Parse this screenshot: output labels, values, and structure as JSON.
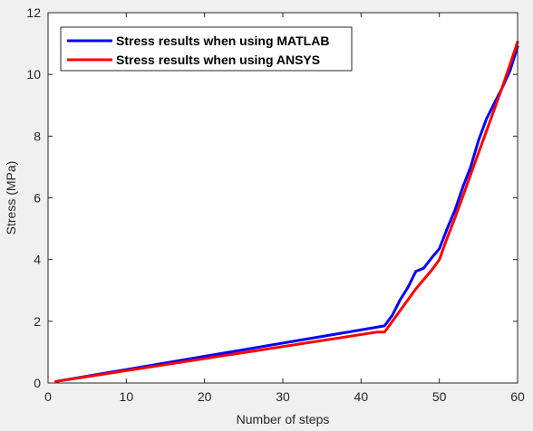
{
  "chart_data": {
    "type": "line",
    "xlabel": "Number of steps",
    "ylabel": "Stress (MPa)",
    "xlim": [
      0,
      60
    ],
    "ylim": [
      0,
      12
    ],
    "xticks": [
      "0",
      "10",
      "20",
      "30",
      "40",
      "50",
      "60"
    ],
    "yticks": [
      "0",
      "2",
      "4",
      "6",
      "8",
      "10",
      "12"
    ],
    "grid": false,
    "legend_position": "top-left",
    "series": [
      {
        "name": "Stress results when using MATLAB",
        "color": "#0000ff",
        "x": [
          1,
          43,
          44,
          45,
          46,
          47,
          48,
          49,
          50,
          51,
          52,
          53,
          54,
          55,
          56,
          57,
          58,
          59,
          60
        ],
        "y": [
          0.05,
          1.85,
          2.2,
          2.7,
          3.1,
          3.62,
          3.72,
          4.05,
          4.35,
          5.0,
          5.6,
          6.35,
          7.0,
          7.85,
          8.55,
          9.05,
          9.55,
          10.1,
          10.9
        ]
      },
      {
        "name": "Stress results when using ANSYS",
        "color": "#ff0000",
        "x": [
          1,
          42,
          43,
          44,
          45,
          46,
          47,
          48,
          49,
          50,
          51,
          52,
          53,
          54,
          55,
          56,
          57,
          58,
          59,
          60
        ],
        "y": [
          0.05,
          1.65,
          1.65,
          2.0,
          2.35,
          2.7,
          3.05,
          3.35,
          3.65,
          4.0,
          4.7,
          5.35,
          6.05,
          6.75,
          7.45,
          8.15,
          8.85,
          9.55,
          10.3,
          11.05
        ]
      }
    ]
  }
}
